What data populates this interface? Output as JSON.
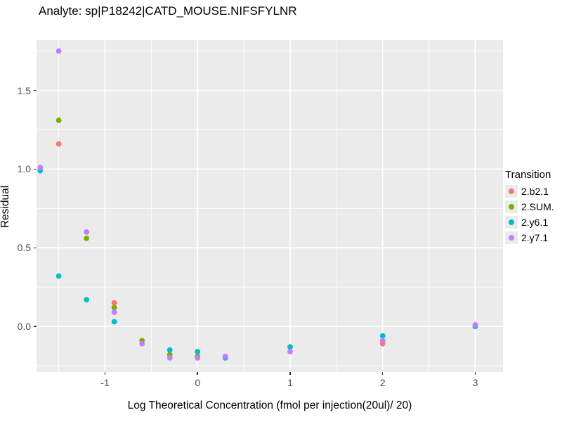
{
  "title": "Analyte: sp|P18242|CATD_MOUSE.NIFSFYLNR",
  "chart_data": {
    "type": "scatter",
    "title": "Analyte: sp|P18242|CATD_MOUSE.NIFSFYLNR",
    "xlabel": "Log Theoretical Concentration (fmol per injection(20ul)/ 20)",
    "ylabel": "Residual",
    "xlim": [
      -1.74,
      3.3
    ],
    "ylim": [
      -0.29,
      1.82
    ],
    "x_ticks": {
      "values": [
        -1,
        0,
        1,
        2,
        3
      ],
      "labels": [
        "-1",
        "0",
        "1",
        "2",
        "3"
      ]
    },
    "y_ticks": {
      "values": [
        0.0,
        0.5,
        1.0,
        1.5
      ],
      "labels": [
        "0.0",
        "0.5",
        "1.0",
        "1.5"
      ]
    },
    "x_minor": [
      -1.5,
      -0.5,
      0.5,
      1.5,
      2.5
    ],
    "y_minor": [
      -0.25,
      0.25,
      0.75,
      1.25,
      1.75
    ],
    "grid": true,
    "panel_bg": "#EBEBEB",
    "grid_color": "#FFFFFF",
    "tick_color": "#333333",
    "legend": {
      "title": "Transition",
      "position": "right"
    },
    "series": [
      {
        "name": "2.b2.1",
        "color": "#F8766D",
        "points": [
          [
            -1.5,
            1.16
          ],
          [
            -0.9,
            0.15
          ],
          [
            2,
            -0.11
          ]
        ]
      },
      {
        "name": "2.SUM.",
        "color": "#7CAE00",
        "points": [
          [
            -1.5,
            1.31
          ],
          [
            -1.2,
            0.56
          ],
          [
            -0.9,
            0.12
          ],
          [
            -0.6,
            -0.09
          ],
          [
            -0.3,
            -0.18
          ],
          [
            0,
            -0.19
          ]
        ]
      },
      {
        "name": "2.y6.1",
        "color": "#00BFC4",
        "points": [
          [
            -1.7,
            0.99
          ],
          [
            -1.5,
            0.32
          ],
          [
            -1.2,
            0.17
          ],
          [
            -0.9,
            0.03
          ],
          [
            -0.3,
            -0.15
          ],
          [
            0,
            -0.16
          ],
          [
            0.3,
            -0.2
          ],
          [
            1,
            -0.13
          ],
          [
            2,
            -0.06
          ],
          [
            3,
            0.0
          ]
        ]
      },
      {
        "name": "2.y7.1",
        "color": "#C77CFF",
        "points": [
          [
            -1.7,
            1.01
          ],
          [
            -1.5,
            1.75
          ],
          [
            -1.2,
            0.6
          ],
          [
            -0.9,
            0.09
          ],
          [
            -0.6,
            -0.11
          ],
          [
            -0.3,
            -0.2
          ],
          [
            0,
            -0.2
          ],
          [
            0.3,
            -0.19
          ],
          [
            1,
            -0.16
          ],
          [
            2,
            -0.09
          ],
          [
            3,
            0.01
          ]
        ]
      }
    ]
  }
}
